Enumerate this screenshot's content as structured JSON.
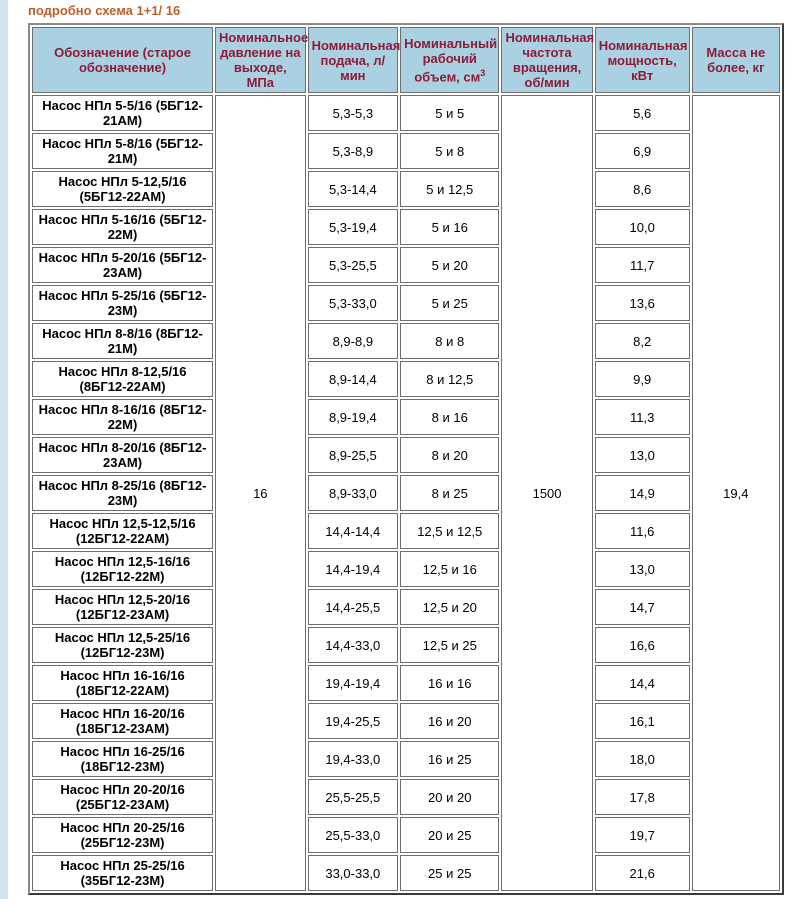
{
  "page": {
    "title_link": "подробно схема 1+1/ 16",
    "colors": {
      "title_text": "#c05f2c",
      "header_bg": "#a9d1e1",
      "header_text": "#8e1b38",
      "left_strip": "#d2e5ef",
      "table_outer_border": "#3a3a3a",
      "cell_border": "#6e6e6e",
      "body_text": "#000000",
      "page_bg": "#ffffff"
    }
  },
  "table": {
    "headers": [
      {
        "label": "Обозначение (старое обозначение)"
      },
      {
        "label": "Номинальное давление на выходе, МПа"
      },
      {
        "label": "Номинальная подача, л/ мин"
      },
      {
        "label": "Номинальный рабочий объем, см",
        "sup": "3"
      },
      {
        "label": "Номинальная частота вращения, об/мин"
      },
      {
        "label": "Номинальная мощность, кВт"
      },
      {
        "label": "Масса не более, кг"
      }
    ],
    "merged_values": {
      "pressure_mpa": "16",
      "speed_rpm": "1500",
      "mass_kg": "19,4"
    },
    "rows": [
      {
        "name": "Насос НПл 5-5/16 (5БГ12-21АМ)",
        "flow": "5,3-5,3",
        "displacement": "5 и 5",
        "power": "5,6"
      },
      {
        "name": "Насос НПл 5-8/16 (5БГ12-21М)",
        "flow": "5,3-8,9",
        "displacement": "5 и 8",
        "power": "6,9"
      },
      {
        "name": "Насос НПл 5-12,5/16 (5БГ12-22АМ)",
        "flow": "5,3-14,4",
        "displacement": "5 и 12,5",
        "power": "8,6"
      },
      {
        "name": "Насос НПл 5-16/16 (5БГ12-22М)",
        "flow": "5,3-19,4",
        "displacement": "5 и 16",
        "power": "10,0"
      },
      {
        "name": "Насос НПл 5-20/16 (5БГ12-23АМ)",
        "flow": "5,3-25,5",
        "displacement": "5 и 20",
        "power": "11,7"
      },
      {
        "name": "Насос НПл 5-25/16 (5БГ12-23М)",
        "flow": "5,3-33,0",
        "displacement": "5 и 25",
        "power": "13,6"
      },
      {
        "name": "Насос НПл 8-8/16 (8БГ12-21М)",
        "flow": "8,9-8,9",
        "displacement": "8 и 8",
        "power": "8,2"
      },
      {
        "name": "Насос НПл 8-12,5/16 (8БГ12-22АМ)",
        "flow": "8,9-14,4",
        "displacement": "8 и 12,5",
        "power": "9,9"
      },
      {
        "name": "Насос НПл 8-16/16 (8БГ12-22М)",
        "flow": "8,9-19,4",
        "displacement": "8 и 16",
        "power": "11,3"
      },
      {
        "name": "Насос НПл 8-20/16 (8БГ12-23АМ)",
        "flow": "8,9-25,5",
        "displacement": "8 и 20",
        "power": "13,0"
      },
      {
        "name": "Насос НПл 8-25/16 (8БГ12-23М)",
        "flow": "8,9-33,0",
        "displacement": "8 и 25",
        "power": "14,9"
      },
      {
        "name": "Насос НПл 12,5-12,5/16 (12БГ12-22АМ)",
        "flow": "14,4-14,4",
        "displacement": "12,5 и 12,5",
        "power": "11,6"
      },
      {
        "name": "Насос НПл 12,5-16/16 (12БГ12-22М)",
        "flow": "14,4-19,4",
        "displacement": "12,5 и 16",
        "power": "13,0"
      },
      {
        "name": "Насос НПл 12,5-20/16 (12БГ12-23АМ)",
        "flow": "14,4-25,5",
        "displacement": "12,5 и 20",
        "power": "14,7"
      },
      {
        "name": "Насос НПл 12,5-25/16 (12БГ12-23М)",
        "flow": "14,4-33,0",
        "displacement": "12,5 и 25",
        "power": "16,6"
      },
      {
        "name": "Насос НПл 16-16/16 (18БГ12-22АМ)",
        "flow": "19,4-19,4",
        "displacement": "16 и 16",
        "power": "14,4"
      },
      {
        "name": "Насос НПл 16-20/16 (18БГ12-23АМ)",
        "flow": "19,4-25,5",
        "displacement": "16 и 20",
        "power": "16,1"
      },
      {
        "name": "Насос НПл 16-25/16 (18БГ12-23М)",
        "flow": "19,4-33,0",
        "displacement": "16 и 25",
        "power": "18,0"
      },
      {
        "name": "Насос НПл 20-20/16 (25БГ12-23АМ)",
        "flow": "25,5-25,5",
        "displacement": "20 и 20",
        "power": "17,8"
      },
      {
        "name": "Насос НПл 20-25/16 (25БГ12-23М)",
        "flow": "25,5-33,0",
        "displacement": "20 и 25",
        "power": "19,7"
      },
      {
        "name": "Насос НПл 25-25/16 (35БГ12-23М)",
        "flow": "33,0-33,0",
        "displacement": "25 и 25",
        "power": "21,6"
      }
    ]
  }
}
